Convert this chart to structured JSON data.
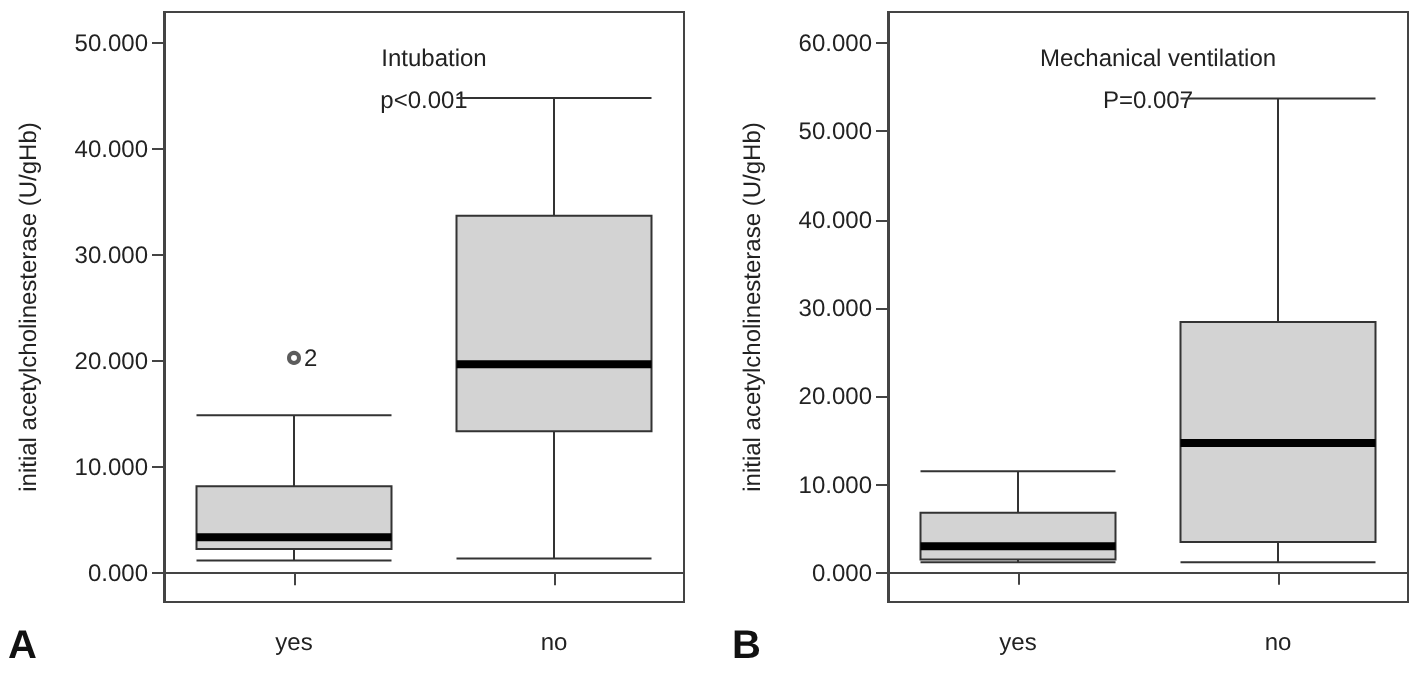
{
  "chart_data": [
    {
      "type": "box",
      "title": "Intubation",
      "ylabel": "initial acetylcholinesterase (U/gHb)",
      "categories": [
        "yes",
        "no"
      ],
      "series": [
        {
          "color": "#d3d3d3",
          "boxes": [
            {
              "low": 1.2,
              "q1": 2.3,
              "median": 3.4,
              "q3": 8.2,
              "high": 14.9,
              "outliers": [
                20.3
              ]
            },
            {
              "low": 1.4,
              "q1": 13.4,
              "median": 19.7,
              "q3": 33.7,
              "high": 44.8
            }
          ]
        }
      ],
      "ylim": [
        -2.7,
        52.9
      ],
      "yticks": [
        {
          "value": 0,
          "label": "0.000"
        },
        {
          "value": 10,
          "label": "10.000"
        },
        {
          "value": 20,
          "label": "20.000"
        },
        {
          "value": 30,
          "label": "30.000"
        },
        {
          "value": 40,
          "label": "40.000"
        },
        {
          "value": 50,
          "label": "50.000"
        }
      ],
      "annotations": [
        "p<0.001",
        "A",
        "2"
      ]
    },
    {
      "type": "box",
      "title": "Mechanical ventilation",
      "ylabel": "initial acetylcholinesterase (U/gHb)",
      "categories": [
        "yes",
        "no"
      ],
      "series": [
        {
          "color": "#d3d3d3",
          "boxes": [
            {
              "low": 1.2,
              "q1": 1.5,
              "median": 3.0,
              "q3": 6.8,
              "high": 11.5
            },
            {
              "low": 1.2,
              "q1": 3.5,
              "median": 14.7,
              "q3": 28.4,
              "high": 53.7
            }
          ]
        }
      ],
      "ylim": [
        -3.3,
        63.5
      ],
      "yticks": [
        {
          "value": 0,
          "label": "0.000"
        },
        {
          "value": 10,
          "label": "10.000"
        },
        {
          "value": 20,
          "label": "20.000"
        },
        {
          "value": 30,
          "label": "30.000"
        },
        {
          "value": 40,
          "label": "40.000"
        },
        {
          "value": 50,
          "label": "50.000"
        },
        {
          "value": 60,
          "label": "60.000"
        }
      ],
      "annotations": [
        "P=0.007",
        "B"
      ]
    }
  ]
}
